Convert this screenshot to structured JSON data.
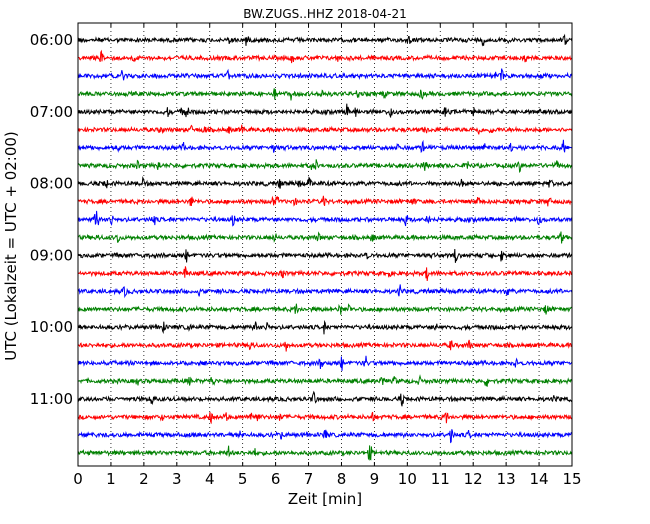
{
  "chart_data": {
    "type": "line",
    "title": "BW.ZUGS..HHZ 2018-04-21",
    "xlabel": "Zeit  [min]",
    "ylabel": "UTC (Lokalzeit = UTC + 02:00)",
    "xlim": [
      0,
      15
    ],
    "x_ticks": [
      "0",
      "1",
      "2",
      "3",
      "4",
      "5",
      "6",
      "7",
      "8",
      "9",
      "10",
      "11",
      "12",
      "13",
      "14",
      "15"
    ],
    "y_ticks": [
      "06:00",
      "07:00",
      "08:00",
      "09:00",
      "10:00",
      "11:00"
    ],
    "grid": "vertical dotted",
    "trace_colors": [
      "#000000",
      "#ff0000",
      "#0000ff",
      "#008000"
    ],
    "traces": [
      {
        "start": "06:00",
        "color": "#000000"
      },
      {
        "start": "06:15",
        "color": "#ff0000"
      },
      {
        "start": "06:30",
        "color": "#0000ff"
      },
      {
        "start": "06:45",
        "color": "#008000"
      },
      {
        "start": "07:00",
        "color": "#000000"
      },
      {
        "start": "07:15",
        "color": "#ff0000"
      },
      {
        "start": "07:30",
        "color": "#0000ff"
      },
      {
        "start": "07:45",
        "color": "#008000"
      },
      {
        "start": "08:00",
        "color": "#000000"
      },
      {
        "start": "08:15",
        "color": "#ff0000"
      },
      {
        "start": "08:30",
        "color": "#0000ff"
      },
      {
        "start": "08:45",
        "color": "#008000"
      },
      {
        "start": "09:00",
        "color": "#000000"
      },
      {
        "start": "09:15",
        "color": "#ff0000"
      },
      {
        "start": "09:30",
        "color": "#0000ff"
      },
      {
        "start": "09:45",
        "color": "#008000"
      },
      {
        "start": "10:00",
        "color": "#000000"
      },
      {
        "start": "10:15",
        "color": "#ff0000"
      },
      {
        "start": "10:30",
        "color": "#0000ff"
      },
      {
        "start": "10:45",
        "color": "#008000"
      },
      {
        "start": "11:00",
        "color": "#000000"
      },
      {
        "start": "11:15",
        "color": "#ff0000"
      },
      {
        "start": "11:30",
        "color": "#0000ff"
      },
      {
        "start": "11:45",
        "color": "#008000"
      }
    ]
  }
}
